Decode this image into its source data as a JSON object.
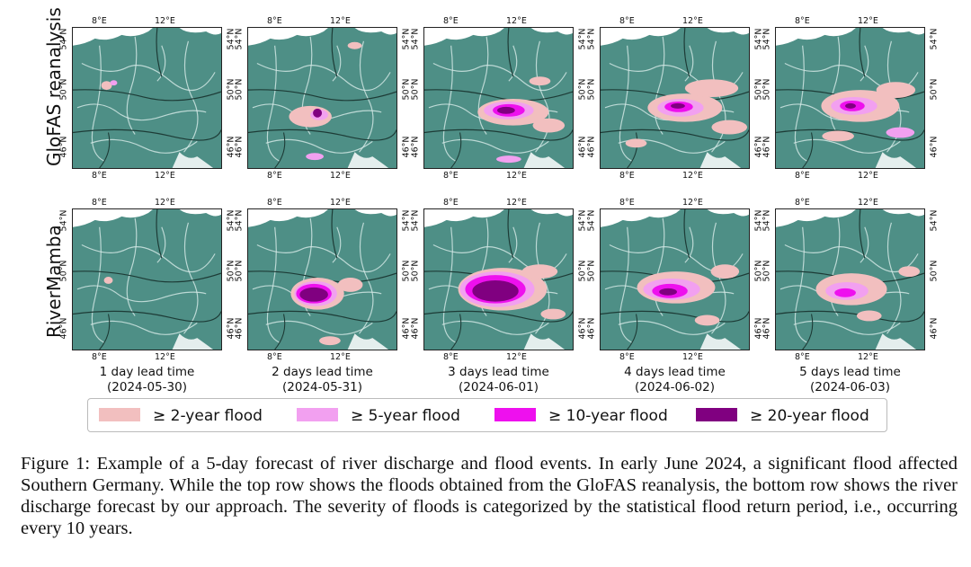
{
  "rows": [
    {
      "label": "GloFAS reanalysis"
    },
    {
      "label": "RiverMamba"
    }
  ],
  "ticks": {
    "lon_west": "8°E",
    "lon_east": "12°E",
    "lat_north": "54°N",
    "lat_mid": "50°N",
    "lat_south": "46°N"
  },
  "columns": [
    {
      "lead": "1 day lead time",
      "date": "(2024-05-30)"
    },
    {
      "lead": "2 days lead time",
      "date": "(2024-05-31)"
    },
    {
      "lead": "3 days lead time",
      "date": "(2024-06-01)"
    },
    {
      "lead": "4 days lead time",
      "date": "(2024-06-02)"
    },
    {
      "lead": "5 days lead time",
      "date": "(2024-06-03)"
    }
  ],
  "colors": {
    "land": "#4e8f86",
    "flood2": "#f2bfbf",
    "flood5": "#f2a0f0",
    "flood10": "#ee10ee",
    "flood20": "#800080"
  },
  "legend": [
    {
      "label": "≥  2-year flood",
      "color": "#f2bfbf"
    },
    {
      "label": "≥  5-year flood",
      "color": "#f2a0f0"
    },
    {
      "label": "≥  10-year flood",
      "color": "#ee10ee"
    },
    {
      "label": "≥  20-year flood",
      "color": "#800080"
    }
  ],
  "caption": "Figure 1: Example of a 5-day forecast of river discharge and flood events. In early June 2024, a significant flood affected Southern Germany. While the top row shows the floods obtained from the GloFAS reanalysis, the bottom row shows the river discharge forecast by our approach. The severity of floods is categorized by the statistical flood return period, i.e., occurring every 10 years."
}
